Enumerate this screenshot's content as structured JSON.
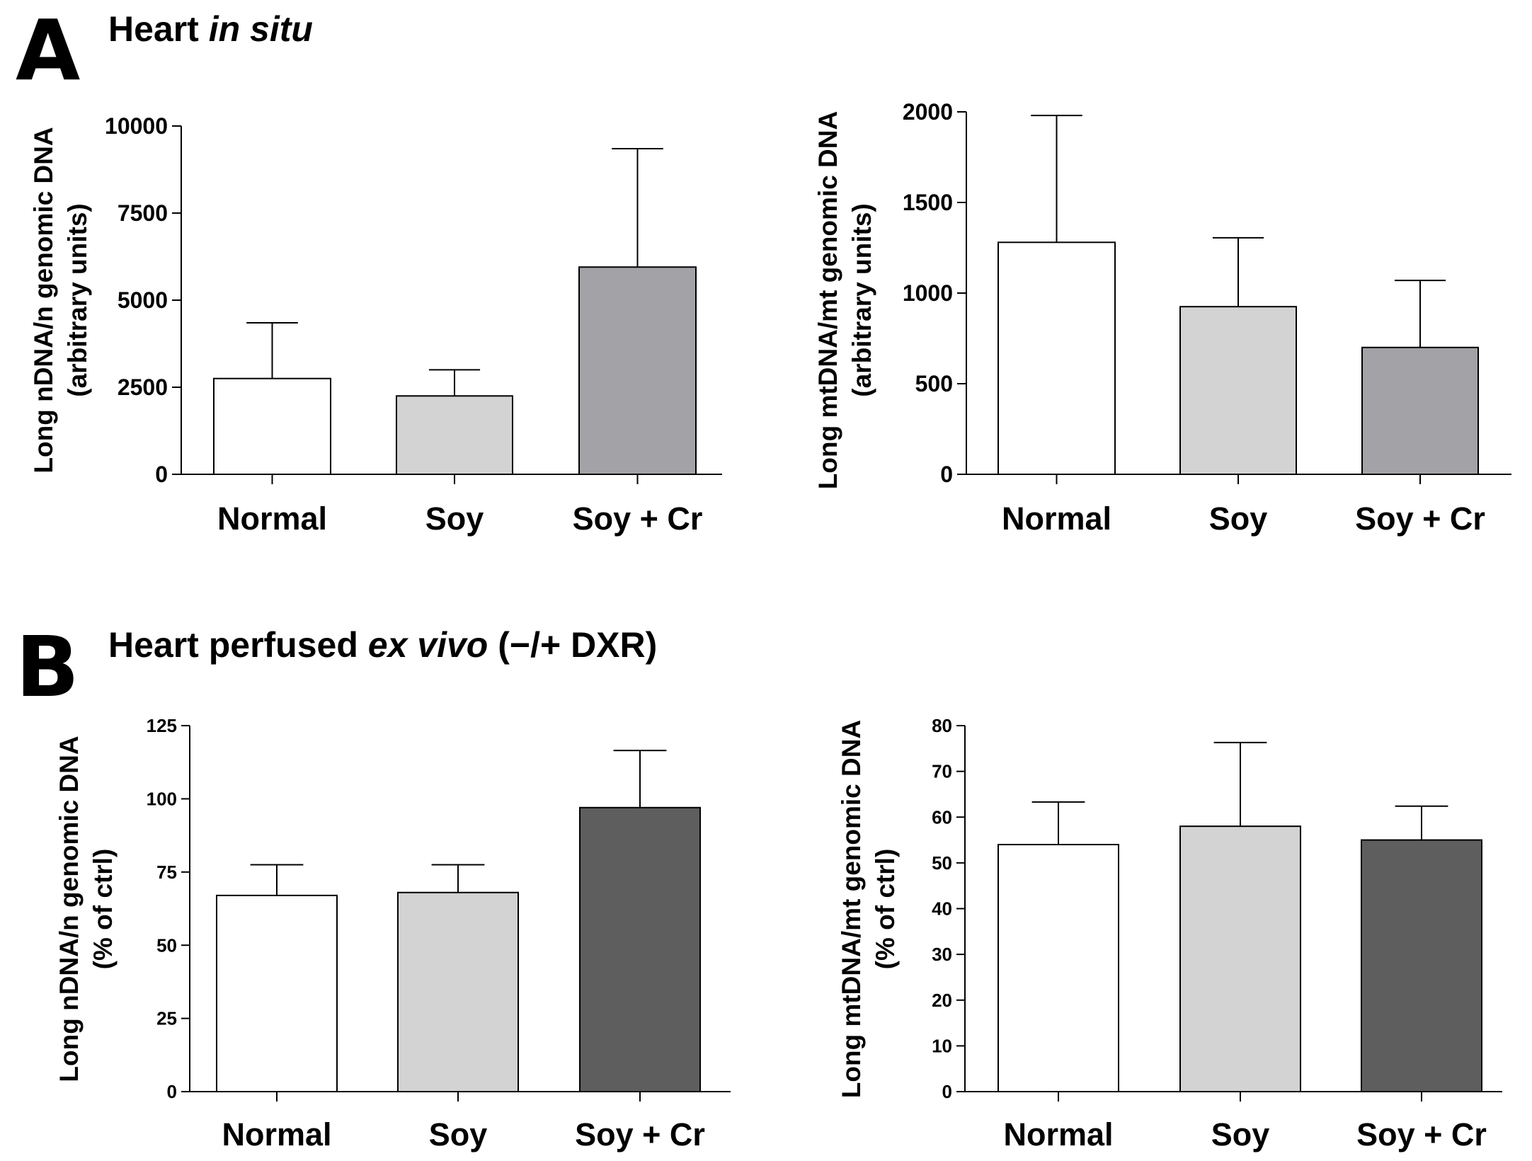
{
  "panels": [
    {
      "letter": "A",
      "title": "Heart ",
      "title_italic": "in situ",
      "title_suffix": ""
    },
    {
      "letter": "B",
      "title": "Heart perfused ",
      "title_italic": "ex vivo",
      "title_suffix": " (−/+ DXR)"
    }
  ],
  "chart_data": [
    {
      "type": "bar",
      "panel": "A",
      "categories": [
        "Normal",
        "Soy",
        "Soy + Cr"
      ],
      "values": [
        2750,
        2250,
        5950
      ],
      "error_upper": [
        4350,
        3000,
        9350
      ],
      "bar_colors": [
        "#ffffff",
        "#d3d3d3",
        "#a3a3a7"
      ],
      "ylabel_line1": "Long nDNA/n genomic DNA",
      "ylabel_line2": "(arbitrary units)",
      "ylim": [
        0,
        10000
      ],
      "yticks": [
        0,
        2500,
        5000,
        7500,
        10000
      ]
    },
    {
      "type": "bar",
      "panel": "A",
      "categories": [
        "Normal",
        "Soy",
        "Soy + Cr"
      ],
      "values": [
        1280,
        925,
        700
      ],
      "error_upper": [
        1980,
        1305,
        1070
      ],
      "bar_colors": [
        "#ffffff",
        "#d3d3d3",
        "#a3a3a7"
      ],
      "ylabel_line1": "Long mtDNA/mt genomic DNA",
      "ylabel_line2": "(arbitrary units)",
      "ylim": [
        0,
        2000
      ],
      "yticks": [
        0,
        500,
        1000,
        1500,
        2000
      ]
    },
    {
      "type": "bar",
      "panel": "B",
      "categories": [
        "Normal",
        "Soy",
        "Soy + Cr"
      ],
      "values": [
        67,
        68,
        97
      ],
      "error_upper": [
        77.5,
        77.5,
        116.5
      ],
      "bar_colors": [
        "#ffffff",
        "#d3d3d3",
        "#5e5e5e"
      ],
      "ylabel_line1": "Long nDNA/n genomic DNA",
      "ylabel_line2": "(% of  ctrl)",
      "ylim": [
        0,
        125
      ],
      "yticks": [
        0,
        25,
        50,
        75,
        100,
        125
      ]
    },
    {
      "type": "bar",
      "panel": "B",
      "categories": [
        "Normal",
        "Soy",
        "Soy + Cr"
      ],
      "values": [
        54,
        58,
        55
      ],
      "error_upper": [
        63.3,
        76.3,
        62.4
      ],
      "bar_colors": [
        "#ffffff",
        "#d3d3d3",
        "#5e5e5e"
      ],
      "ylabel_line1": "Long mtDNA/mt genomic DNA",
      "ylabel_line2": "(% of ctrl)",
      "ylim": [
        0,
        80
      ],
      "yticks": [
        0,
        10,
        20,
        30,
        40,
        50,
        60,
        70,
        80
      ]
    }
  ]
}
